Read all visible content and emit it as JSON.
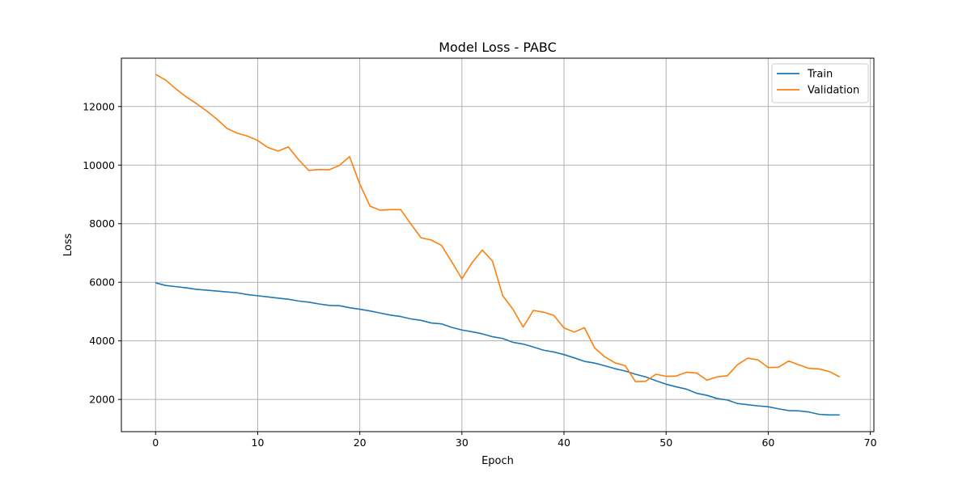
{
  "chart_data": {
    "type": "line",
    "title": "Model Loss - PABC",
    "xlabel": "Epoch",
    "ylabel": "Loss",
    "xlim": [
      -3.35,
      70.35
    ],
    "ylim": [
      900,
      13650
    ],
    "xticks": [
      0,
      10,
      20,
      30,
      40,
      50,
      60,
      70
    ],
    "xtick_labels": [
      "0",
      "10",
      "20",
      "30",
      "40",
      "50",
      "60",
      "70"
    ],
    "yticks": [
      2000,
      4000,
      6000,
      8000,
      10000,
      12000
    ],
    "ytick_labels": [
      "2000",
      "4000",
      "6000",
      "8000",
      "10000",
      "12000"
    ],
    "grid": true,
    "legend_position": "top-right",
    "x": [
      0,
      1,
      2,
      3,
      4,
      5,
      6,
      7,
      8,
      9,
      10,
      11,
      12,
      13,
      14,
      15,
      16,
      17,
      18,
      19,
      20,
      21,
      22,
      23,
      24,
      25,
      26,
      27,
      28,
      29,
      30,
      31,
      32,
      33,
      34,
      35,
      36,
      37,
      38,
      39,
      40,
      41,
      42,
      43,
      44,
      45,
      46,
      47,
      48,
      49,
      50,
      51,
      52,
      53,
      54,
      55,
      56,
      57,
      58,
      59,
      60,
      61,
      62,
      63,
      64,
      65,
      66,
      67
    ],
    "series": [
      {
        "name": "Train",
        "color": "#1f77b4",
        "values": [
          5980,
          5890,
          5850,
          5810,
          5760,
          5730,
          5700,
          5670,
          5640,
          5580,
          5540,
          5500,
          5460,
          5420,
          5360,
          5320,
          5260,
          5210,
          5200,
          5130,
          5080,
          5020,
          4950,
          4880,
          4830,
          4750,
          4700,
          4610,
          4580,
          4460,
          4370,
          4310,
          4240,
          4140,
          4080,
          3950,
          3890,
          3790,
          3680,
          3620,
          3530,
          3420,
          3300,
          3240,
          3150,
          3050,
          2970,
          2860,
          2770,
          2640,
          2520,
          2430,
          2350,
          2210,
          2140,
          2030,
          1980,
          1860,
          1820,
          1780,
          1750,
          1680,
          1620,
          1610,
          1570,
          1490,
          1470,
          1470
        ]
      },
      {
        "name": "Validation",
        "color": "#ff7f0e",
        "values": [
          13100,
          12900,
          12600,
          12330,
          12100,
          11850,
          11570,
          11250,
          11090,
          10990,
          10840,
          10600,
          10480,
          10620,
          10190,
          9820,
          9850,
          9840,
          9990,
          10290,
          9350,
          8600,
          8460,
          8480,
          8480,
          7990,
          7520,
          7440,
          7260,
          6700,
          6120,
          6670,
          7100,
          6720,
          5540,
          5080,
          4470,
          5040,
          4980,
          4870,
          4440,
          4300,
          4450,
          3760,
          3450,
          3250,
          3150,
          2610,
          2620,
          2860,
          2790,
          2800,
          2930,
          2900,
          2660,
          2770,
          2810,
          3190,
          3410,
          3350,
          3090,
          3100,
          3310,
          3180,
          3060,
          3040,
          2950,
          2770
        ]
      }
    ]
  }
}
